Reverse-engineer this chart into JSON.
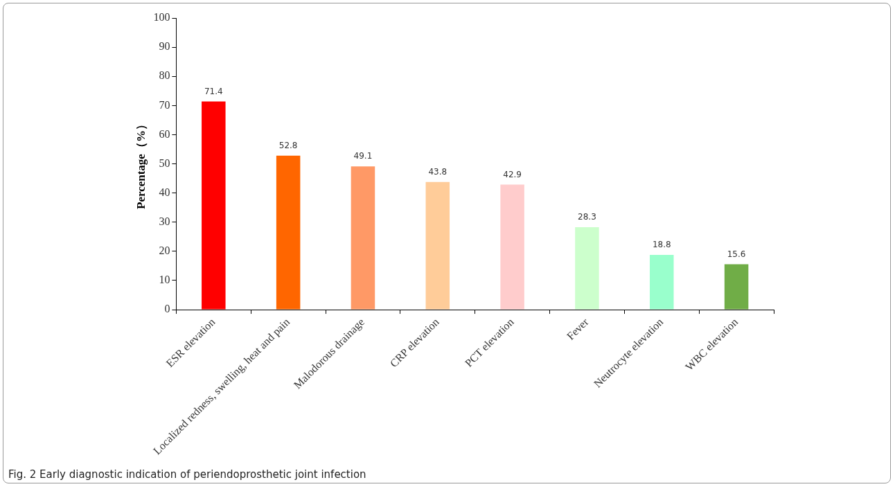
{
  "chart_data": {
    "type": "bar",
    "ylabel": "Percentage（%）",
    "categories": [
      "ESR elevation",
      "Localized redness, swelling, heat and pain",
      "Malodorous drainage",
      "CRP elevation",
      "PCT elevation",
      "Fever",
      "Neutrocyte elevation",
      "WBC elevation"
    ],
    "values": [
      71.4,
      52.8,
      49.1,
      43.8,
      42.9,
      28.3,
      18.8,
      15.6
    ],
    "colors": [
      "#ff0000",
      "#ff6600",
      "#ff9966",
      "#ffcc99",
      "#ffcccc",
      "#ccffcc",
      "#99ffcc",
      "#70ad47"
    ],
    "ylim": [
      0,
      100
    ],
    "yticks": [
      0,
      10,
      20,
      30,
      40,
      50,
      60,
      70,
      80,
      90,
      100
    ],
    "data_labels": true,
    "annotations": [
      "Fig. 2 Early diagnostic indication of periendoprosthetic joint infection"
    ]
  }
}
